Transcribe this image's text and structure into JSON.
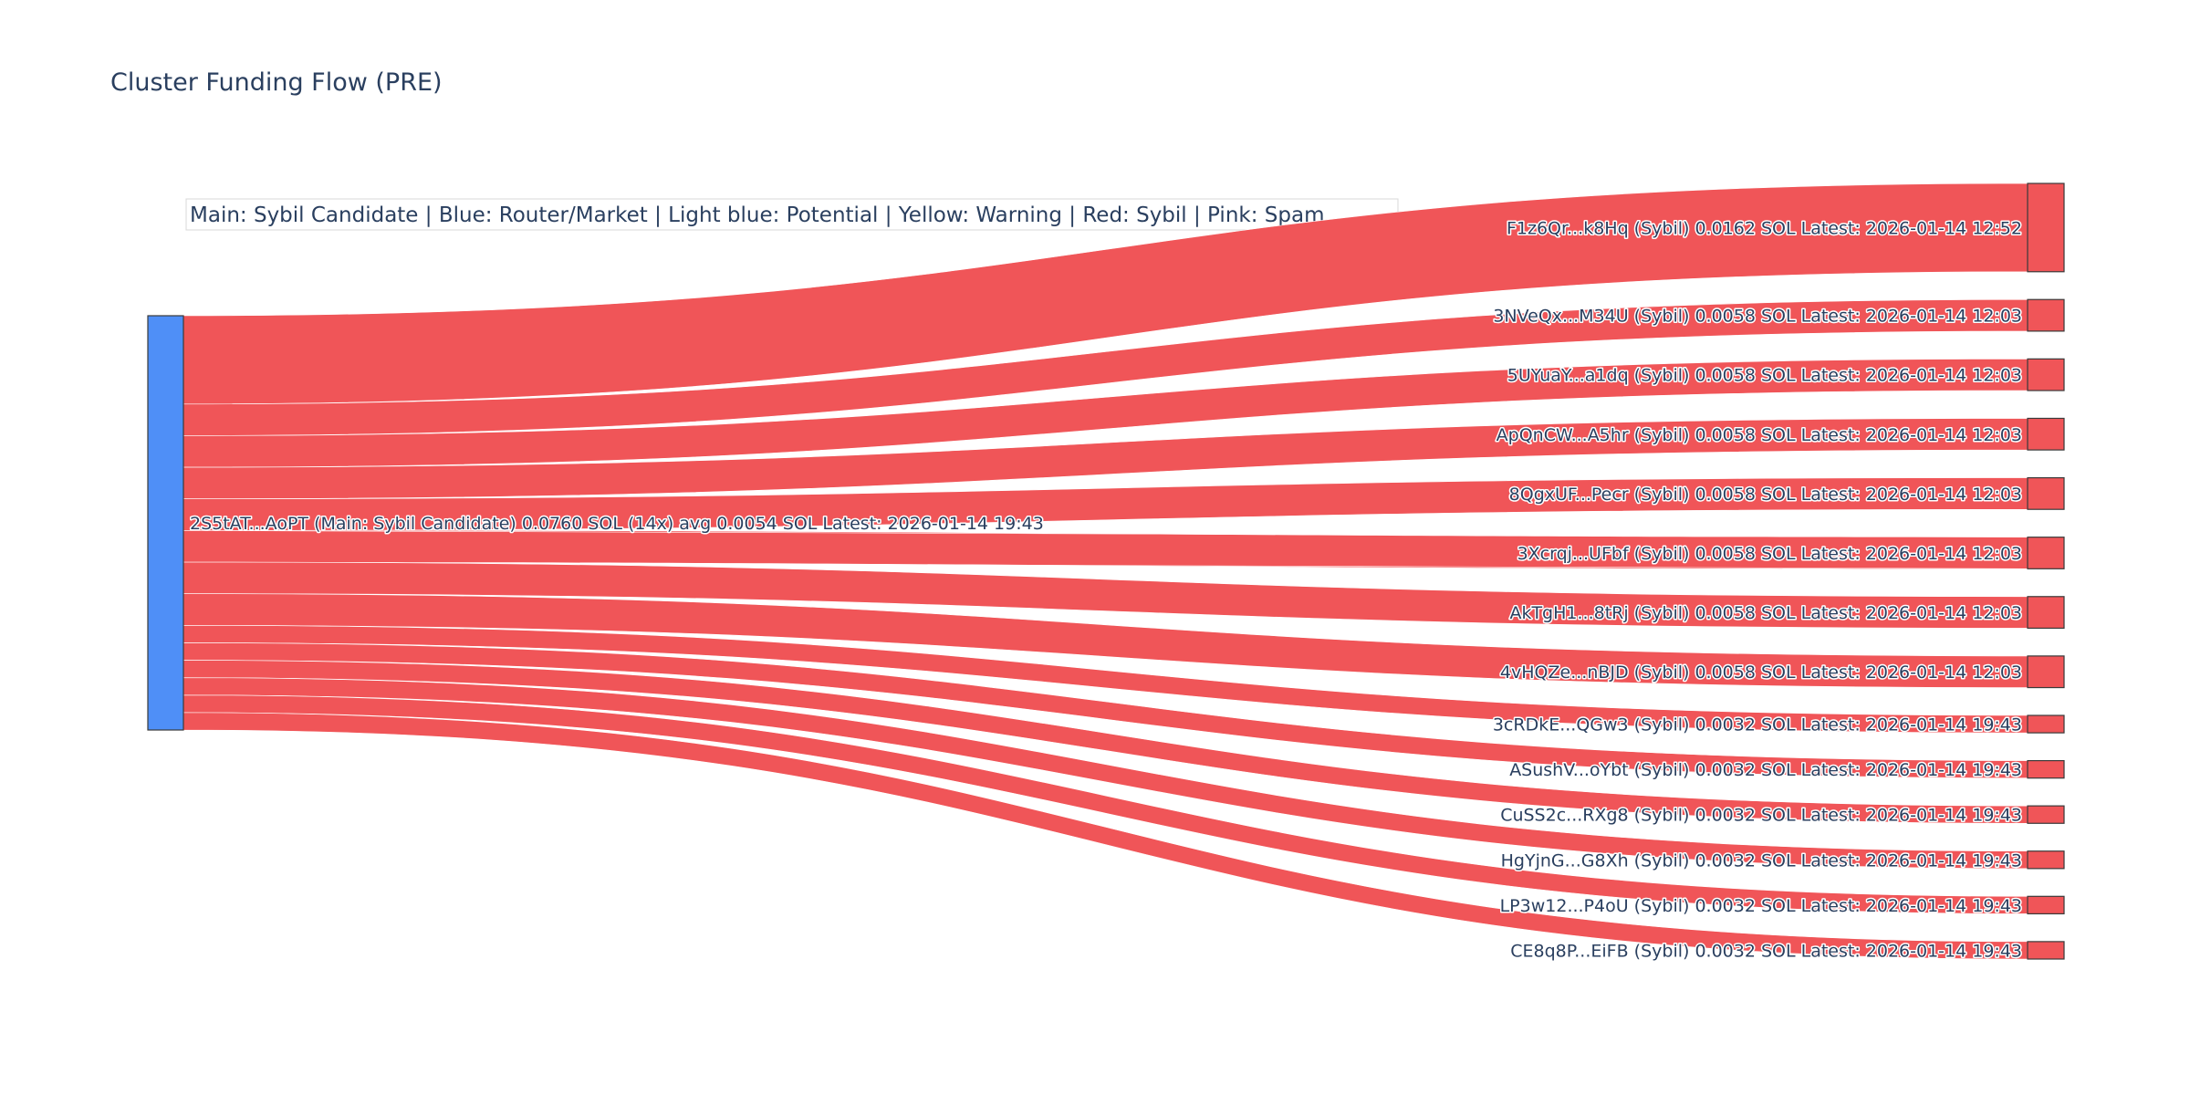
{
  "chart_data": {
    "type": "sankey",
    "title": "Cluster Funding Flow (PRE)",
    "legend_note": "Main: Sybil Candidate  |  Blue: Router/Market | Light blue: Potential | Yellow: Warning | Red: Sybil | Pink: Spam",
    "colors": {
      "main": "#4f8ff7",
      "sybil": "#f05558",
      "node_border": "#3a3a3a"
    },
    "source": {
      "label": "2S5tAT...AoPT (Main: Sybil Candidate) 0.0760 SOL (14x) avg 0.0054 SOL Latest: 2026-01-14 19:43",
      "value": 0.076,
      "category": "main"
    },
    "targets": [
      {
        "label": "F1z6Qr...k8Hq (Sybil) 0.0162 SOL Latest: 2026-01-14 12:52",
        "value": 0.0162,
        "category": "sybil"
      },
      {
        "label": "3NVeQx...M34U (Sybil) 0.0058 SOL Latest: 2026-01-14 12:03",
        "value": 0.0058,
        "category": "sybil"
      },
      {
        "label": "5UYuaY...a1dq (Sybil) 0.0058 SOL Latest: 2026-01-14 12:03",
        "value": 0.0058,
        "category": "sybil"
      },
      {
        "label": "ApQnCW...A5hr (Sybil) 0.0058 SOL Latest: 2026-01-14 12:03",
        "value": 0.0058,
        "category": "sybil"
      },
      {
        "label": "8QgxUF...Pecr (Sybil) 0.0058 SOL Latest: 2026-01-14 12:03",
        "value": 0.0058,
        "category": "sybil"
      },
      {
        "label": "3Xcrqj...UFbf (Sybil) 0.0058 SOL Latest: 2026-01-14 12:03",
        "value": 0.0058,
        "category": "sybil"
      },
      {
        "label": "AkTgH1...8tRj (Sybil) 0.0058 SOL Latest: 2026-01-14 12:03",
        "value": 0.0058,
        "category": "sybil"
      },
      {
        "label": "4vHQZe...nBJD (Sybil) 0.0058 SOL Latest: 2026-01-14 12:03",
        "value": 0.0058,
        "category": "sybil"
      },
      {
        "label": "3cRDkE...QGw3 (Sybil) 0.0032 SOL Latest: 2026-01-14 19:43",
        "value": 0.0032,
        "category": "sybil"
      },
      {
        "label": "ASushV...oYbt (Sybil) 0.0032 SOL Latest: 2026-01-14 19:43",
        "value": 0.0032,
        "category": "sybil"
      },
      {
        "label": "CuSS2c...RXg8 (Sybil) 0.0032 SOL Latest: 2026-01-14 19:43",
        "value": 0.0032,
        "category": "sybil"
      },
      {
        "label": "HgYjnG...G8Xh (Sybil) 0.0032 SOL Latest: 2026-01-14 19:43",
        "value": 0.0032,
        "category": "sybil"
      },
      {
        "label": "LP3w12...P4oU (Sybil) 0.0032 SOL Latest: 2026-01-14 19:43",
        "value": 0.0032,
        "category": "sybil"
      },
      {
        "label": "CE8q8P...EiFB (Sybil) 0.0032 SOL Latest: 2026-01-14 19:43",
        "value": 0.0032,
        "category": "sybil"
      }
    ]
  }
}
